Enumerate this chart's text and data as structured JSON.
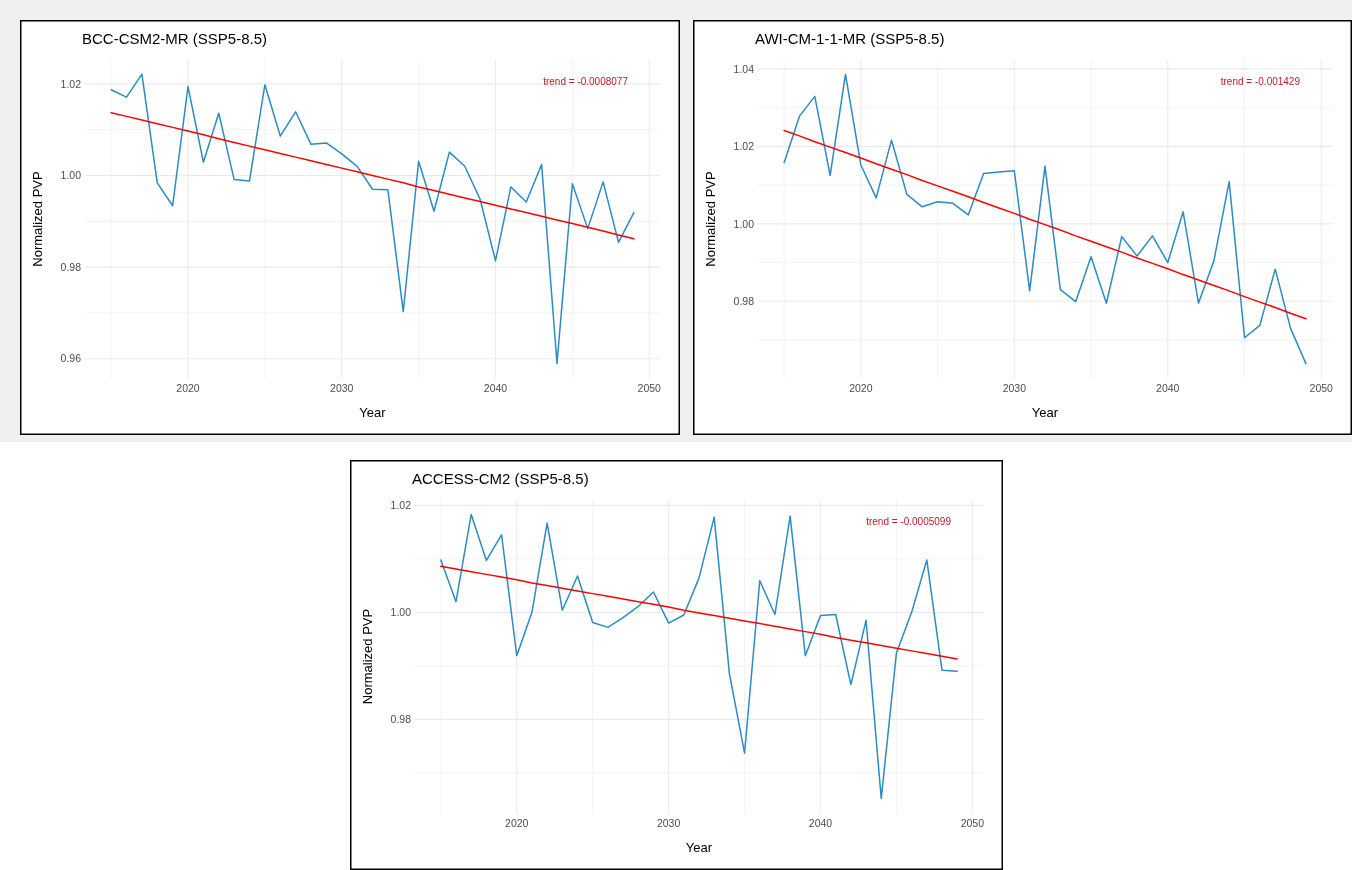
{
  "chart_data": [
    {
      "type": "line",
      "title": "BCC-CSM2-MR (SSP5-8.5)",
      "xlabel": "Year",
      "ylabel": "Normalized PVP",
      "annotations": [
        "trend = -0.0008077"
      ],
      "grid": true,
      "x": [
        2015,
        2016,
        2017,
        2018,
        2019,
        2020,
        2021,
        2022,
        2023,
        2024,
        2025,
        2026,
        2027,
        2028,
        2029,
        2030,
        2031,
        2032,
        2033,
        2034,
        2035,
        2036,
        2037,
        2038,
        2039,
        2040,
        2041,
        2042,
        2043,
        2044,
        2045,
        2046,
        2047,
        2048,
        2049
      ],
      "xlim": [
        2013.3,
        2050.7
      ],
      "xticks": [
        {
          "value": 2015,
          "label": null
        },
        2020,
        {
          "value": 2025,
          "label": null
        },
        2030,
        {
          "value": 2035,
          "label": null
        },
        2040,
        {
          "value": 2045,
          "label": null
        },
        2050
      ],
      "ylim": [
        0.9558,
        1.0252
      ],
      "yticks": [
        0.96,
        {
          "value": 0.97,
          "label": null
        },
        0.98,
        {
          "value": 0.99,
          "label": null
        },
        {
          "value": 1,
          "label": "1.00"
        },
        {
          "value": 1.01,
          "label": null
        },
        1.02
      ],
      "series": [
        {
          "color": "#2b8cc4",
          "values": [
            1.0187,
            1.0171,
            1.0221,
            0.9984,
            0.9934,
            1.0194,
            1.0029,
            1.0136,
            0.9991,
            0.9988,
            1.0198,
            1.0086,
            1.0139,
            1.0068,
            1.0071,
            1.0047,
            1.002,
            0.997,
            0.9969,
            0.9703,
            1.0031,
            0.9922,
            1.0051,
            1.002,
            0.9948,
            0.9814,
            0.9975,
            0.9942,
            1.0024,
            0.959,
            0.9982,
            0.9884,
            0.9986,
            0.9854,
            0.9919
          ]
        },
        {
          "type": "line",
          "color": "#ff0000",
          "values": [
            1.0137,
            1.0129,
            1.0121,
            1.0113,
            1.0105,
            1.0097,
            1.0089,
            1.008,
            1.0072,
            1.0064,
            1.0056,
            1.0048,
            1.004,
            1.0032,
            1.0024,
            1.0016,
            1.0008,
            1,
            0.9992,
            0.9984,
            0.9975,
            0.9967,
            0.9959,
            0.9951,
            0.9943,
            0.9935,
            0.9927,
            0.9919,
            0.9911,
            0.9903,
            0.9895,
            0.9887,
            0.9879,
            0.987,
            0.9862
          ]
        }
      ]
    },
    {
      "type": "line",
      "title": "AWI-CM-1-1-MR (SSP5-8.5)",
      "xlabel": "Year",
      "ylabel": "Normalized PVP",
      "annotations": [
        "trend = -0.001429"
      ],
      "grid": true,
      "x": [
        2015,
        2016,
        2017,
        2018,
        2019,
        2020,
        2021,
        2022,
        2023,
        2024,
        2025,
        2026,
        2027,
        2028,
        2029,
        2030,
        2031,
        2032,
        2033,
        2034,
        2035,
        2036,
        2037,
        2038,
        2039,
        2040,
        2041,
        2042,
        2043,
        2044,
        2045,
        2046,
        2047,
        2048,
        2049
      ],
      "xlim": [
        2013.3,
        2050.7
      ],
      "xticks": [
        {
          "value": 2015,
          "label": null
        },
        2020,
        {
          "value": 2025,
          "label": null
        },
        2030,
        {
          "value": 2035,
          "label": null
        },
        2040,
        {
          "value": 2045,
          "label": null
        },
        2050
      ],
      "ylim": [
        0.9602,
        1.0423
      ],
      "yticks": [
        {
          "value": 0.97,
          "label": null
        },
        0.98,
        {
          "value": 0.99,
          "label": null
        },
        {
          "value": 1,
          "label": "1.00"
        },
        {
          "value": 1.01,
          "label": null
        },
        1.02,
        {
          "value": 1.03,
          "label": null
        },
        1.04
      ],
      "series": [
        {
          "color": "#2b8cc4",
          "values": [
            1.0158,
            1.0278,
            1.0329,
            1.0125,
            1.0386,
            1.0152,
            1.0067,
            1.0216,
            1.0076,
            1.0044,
            1.0057,
            1.0053,
            1.0023,
            1.013,
            1.0134,
            1.0137,
            0.9827,
            1.0149,
            0.983,
            0.9799,
            0.9915,
            0.9795,
            0.9967,
            0.9917,
            0.9969,
            0.99,
            1.0031,
            0.9795,
            0.9904,
            1.0109,
            0.9706,
            0.9738,
            0.9883,
            0.973,
            0.9639
          ]
        },
        {
          "type": "line",
          "color": "#ff0000",
          "values": [
            1.0241,
            1.0227,
            1.0212,
            1.0198,
            1.0184,
            1.017,
            1.0155,
            1.0141,
            1.0127,
            1.0112,
            1.0098,
            1.0084,
            1.007,
            1.0055,
            1.0041,
            1.0027,
            1.0012,
            0.9998,
            0.9984,
            0.9969,
            0.9955,
            0.9941,
            0.9927,
            0.9912,
            0.9898,
            0.9884,
            0.9869,
            0.9855,
            0.9841,
            0.9827,
            0.9812,
            0.9798,
            0.9784,
            0.9769,
            0.9755
          ]
        }
      ]
    },
    {
      "type": "line",
      "title": "ACCESS-CM2 (SSP5-8.5)",
      "xlabel": "Year",
      "ylabel": "Normalized PVP",
      "annotations": [
        "trend = -0.0005099"
      ],
      "grid": true,
      "x": [
        2015,
        2016,
        2017,
        2018,
        2019,
        2020,
        2021,
        2022,
        2023,
        2024,
        2025,
        2026,
        2027,
        2028,
        2029,
        2030,
        2031,
        2032,
        2033,
        2034,
        2035,
        2036,
        2037,
        2038,
        2039,
        2040,
        2041,
        2042,
        2043,
        2044,
        2045,
        2046,
        2047,
        2048,
        2049
      ],
      "xlim": [
        2013.3,
        2050.7
      ],
      "xticks": [
        {
          "value": 2015,
          "label": null
        },
        2020,
        {
          "value": 2025,
          "label": null
        },
        2030,
        {
          "value": 2035,
          "label": null
        },
        2040,
        {
          "value": 2045,
          "label": null
        },
        2050
      ],
      "ylim": [
        0.9625,
        1.021
      ],
      "yticks": [
        {
          "value": 0.97,
          "label": null
        },
        0.98,
        {
          "value": 0.99,
          "label": null
        },
        {
          "value": 1,
          "label": "1.00"
        },
        {
          "value": 1.01,
          "label": null
        },
        1.02
      ],
      "series": [
        {
          "color": "#2b8cc4",
          "values": [
            1.0098,
            1.002,
            1.0183,
            1.0097,
            1.0145,
            0.9919,
            1,
            1.0167,
            1.0004,
            1.0068,
            0.9981,
            0.9972,
            0.999,
            1.0011,
            1.0038,
            0.998,
            0.9995,
            1.0064,
            1.0178,
            0.9886,
            0.9737,
            1.0059,
            0.9996,
            1.018,
            0.9919,
            0.9994,
            0.9996,
            0.9865,
            0.9985,
            0.9652,
            0.9924,
            1,
            1.0098,
            0.9892,
            0.989
          ]
        },
        {
          "type": "line",
          "color": "#ff0000",
          "values": [
            1.0086,
            1.0081,
            1.0076,
            1.0071,
            1.0066,
            1.0061,
            1.0055,
            1.005,
            1.0045,
            1.004,
            1.0035,
            1.003,
            1.0025,
            1.002,
            1.0015,
            1.001,
            1.0004,
            0.9999,
            0.9994,
            0.9989,
            0.9984,
            0.9979,
            0.9974,
            0.9969,
            0.9964,
            0.9959,
            0.9953,
            0.9948,
            0.9943,
            0.9938,
            0.9933,
            0.9928,
            0.9923,
            0.9918,
            0.9913
          ]
        }
      ]
    }
  ]
}
